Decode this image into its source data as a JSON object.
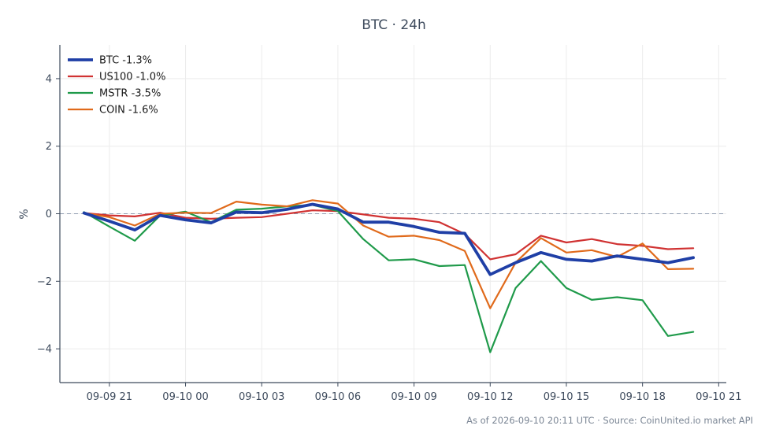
{
  "chart_data": {
    "type": "line",
    "title": "BTC · 24h",
    "xlabel": "",
    "ylabel": "%",
    "ylim": [
      -5,
      5
    ],
    "yticks": [
      -4,
      -2,
      0,
      2,
      4
    ],
    "ytick_labels": [
      "−4",
      "−2",
      "0",
      "2",
      "4"
    ],
    "xlim": [
      -0.95,
      25.3
    ],
    "xticks": [
      1,
      4,
      7,
      10,
      13,
      16,
      19,
      22,
      25
    ],
    "xtick_labels": [
      "09-09 21",
      "09-10 00",
      "09-10 03",
      "09-10 06",
      "09-10 09",
      "09-10 12",
      "09-10 15",
      "09-10 18",
      "09-10 21"
    ],
    "x": [
      0,
      1,
      2,
      3,
      4,
      5,
      6,
      7,
      8,
      9,
      10,
      11,
      12,
      13,
      14,
      15,
      16,
      17,
      18,
      19,
      20,
      21,
      22,
      23,
      24
    ],
    "zero_line": true,
    "grid": true,
    "legend_position": "top-left",
    "series": [
      {
        "name": "BTC -1.3%",
        "color": "#1f3fa6",
        "width": 3.8,
        "values": [
          0.02,
          -0.22,
          -0.48,
          -0.05,
          -0.18,
          -0.27,
          0.05,
          0.03,
          0.13,
          0.28,
          0.14,
          -0.25,
          -0.25,
          -0.38,
          -0.55,
          -0.58,
          -1.8,
          -1.45,
          -1.15,
          -1.35,
          -1.4,
          -1.25,
          -1.35,
          -1.45,
          -1.3
        ]
      },
      {
        "name": "US100 -1.0%",
        "color": "#d03232",
        "width": 2.2,
        "values": [
          0.02,
          -0.05,
          -0.08,
          0.03,
          -0.12,
          -0.15,
          -0.12,
          -0.1,
          0.0,
          0.1,
          0.08,
          -0.02,
          -0.12,
          -0.15,
          -0.25,
          -0.6,
          -1.35,
          -1.2,
          -0.65,
          -0.85,
          -0.75,
          -0.9,
          -0.95,
          -1.05,
          -1.02
        ]
      },
      {
        "name": "MSTR -3.5%",
        "color": "#1f9a4a",
        "width": 2.2,
        "values": [
          0.05,
          -0.38,
          -0.8,
          -0.05,
          0.06,
          -0.25,
          0.12,
          0.15,
          0.22,
          0.26,
          0.08,
          -0.75,
          -1.38,
          -1.35,
          -1.55,
          -1.52,
          -4.1,
          -2.2,
          -1.4,
          -2.2,
          -2.55,
          -2.47,
          -2.56,
          -3.62,
          -3.5
        ]
      },
      {
        "name": "COIN -1.6%",
        "color": "#e06a1b",
        "width": 2.2,
        "values": [
          0.02,
          -0.1,
          -0.35,
          0.0,
          0.03,
          0.02,
          0.36,
          0.27,
          0.22,
          0.4,
          0.3,
          -0.35,
          -0.68,
          -0.65,
          -0.78,
          -1.1,
          -2.8,
          -1.45,
          -0.72,
          -1.15,
          -1.08,
          -1.28,
          -0.88,
          -1.64,
          -1.63
        ]
      }
    ]
  },
  "footer": {
    "note": "As of 2026-09-10 20:11 UTC · Source: CoinUnited.io market API"
  }
}
